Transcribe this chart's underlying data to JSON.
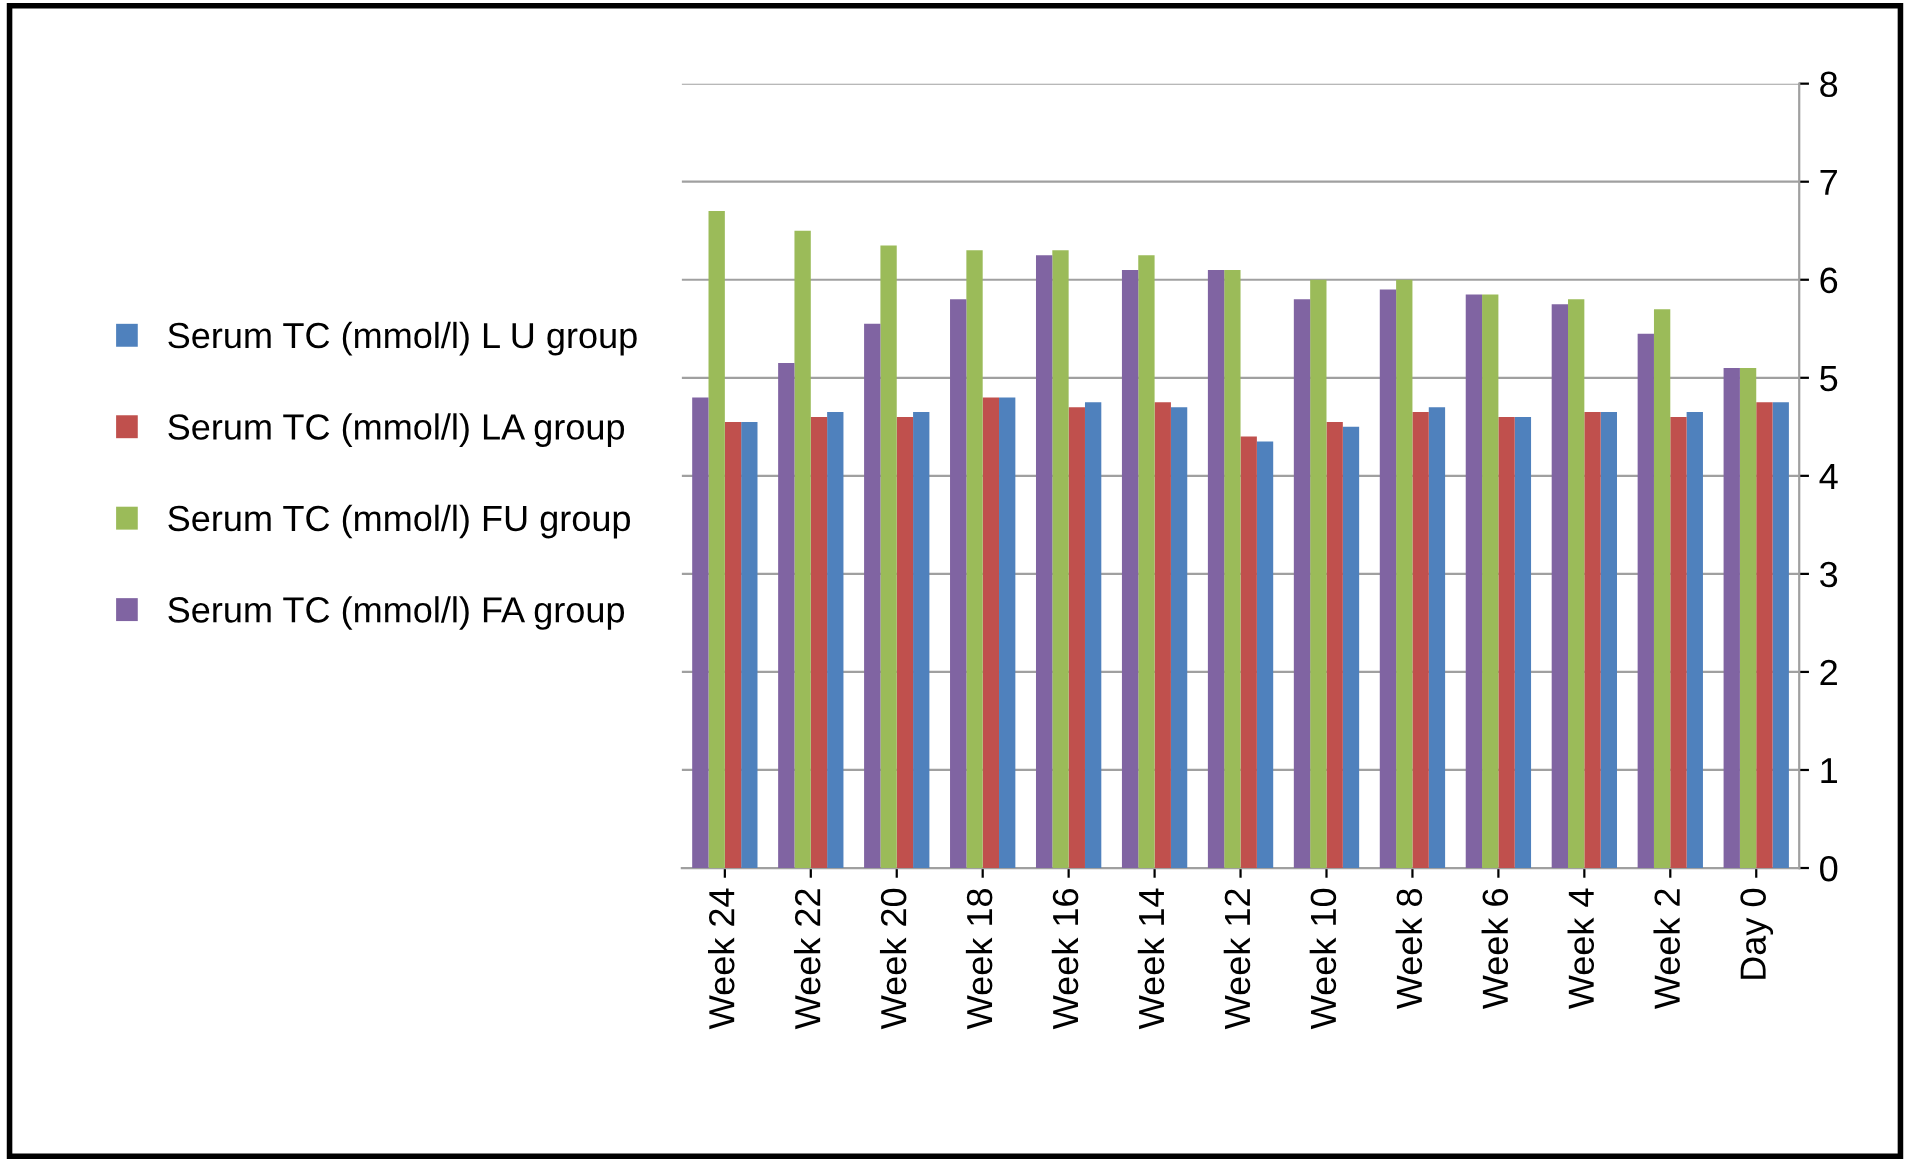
{
  "chart_data": {
    "type": "bar",
    "categories": [
      "Week 24",
      "Week 22",
      "Week 20",
      "Week 18",
      "Week 16",
      "Week 14",
      "Week 12",
      "Week 10",
      "Week 8",
      "Week 6",
      "Week 4",
      "Week 2",
      "Day 0"
    ],
    "series": [
      {
        "name": "Serum TC (mmol/l) L U group",
        "color": "#4f81bd",
        "values": [
          4.55,
          4.65,
          4.65,
          4.8,
          4.75,
          4.7,
          4.35,
          4.5,
          4.7,
          4.6,
          4.65,
          4.65,
          4.75
        ]
      },
      {
        "name": "Serum TC (mmol/l) LA group",
        "color": "#c0504d",
        "values": [
          4.55,
          4.6,
          4.6,
          4.8,
          4.7,
          4.75,
          4.4,
          4.55,
          4.65,
          4.6,
          4.65,
          4.6,
          4.75
        ]
      },
      {
        "name": "Serum TC (mmol/l) FU group",
        "color": "#9bbb59",
        "values": [
          6.7,
          6.5,
          6.35,
          6.3,
          6.3,
          6.25,
          6.1,
          6.0,
          6.0,
          5.85,
          5.8,
          5.7,
          5.1
        ]
      },
      {
        "name": "Serum TC (mmol/l) FA group",
        "color": "#8064a2",
        "values": [
          4.8,
          5.15,
          5.55,
          5.8,
          6.25,
          6.1,
          6.1,
          5.8,
          5.9,
          5.85,
          5.75,
          5.45,
          5.1
        ]
      }
    ],
    "ylim": [
      0,
      8
    ],
    "yticks": [
      0,
      1,
      2,
      3,
      4,
      5,
      6,
      7,
      8
    ],
    "grid": "y",
    "legend": "left"
  }
}
